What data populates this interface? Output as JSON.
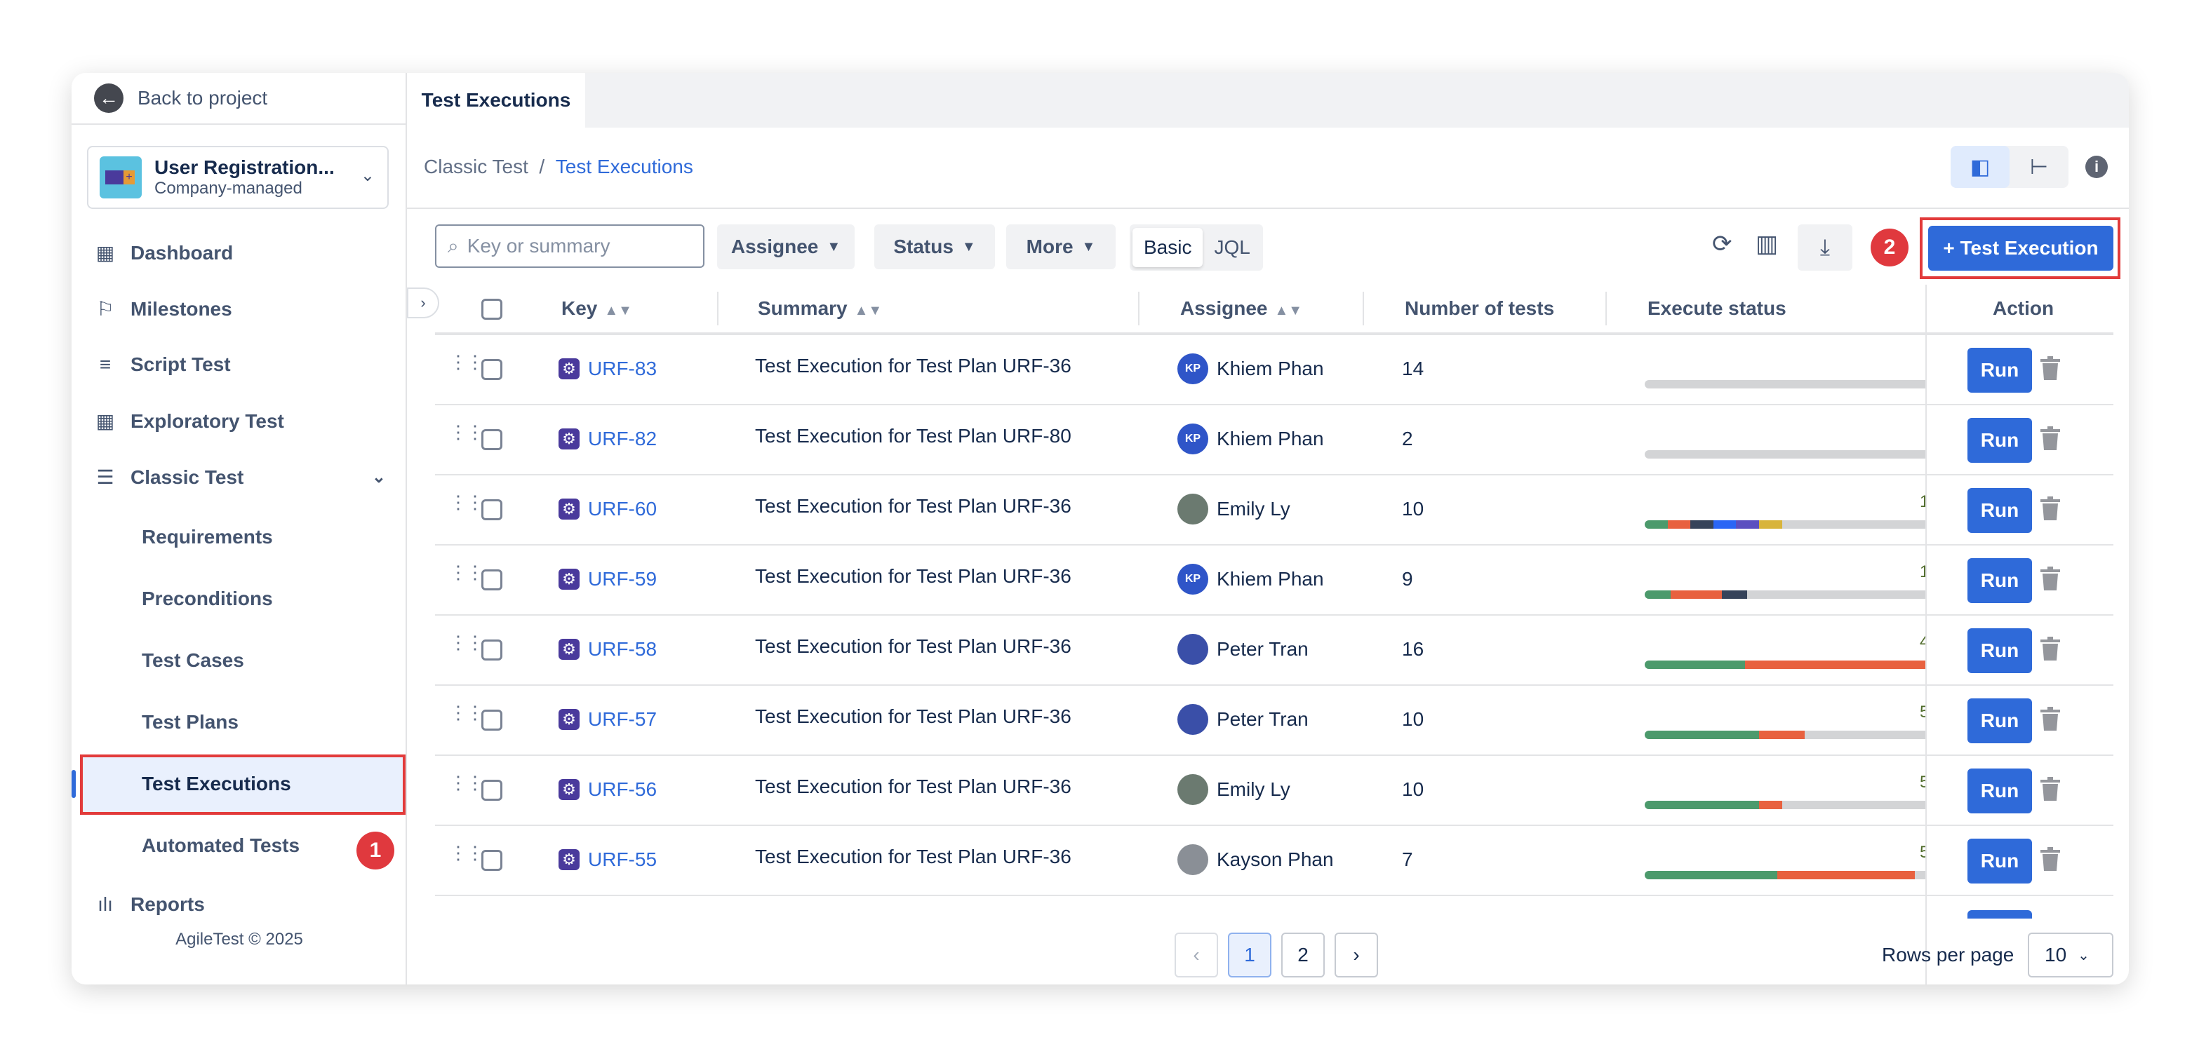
{
  "sidebar": {
    "back": "Back to project",
    "project": {
      "name": "User Registration...",
      "type": "Company-managed"
    },
    "items": [
      {
        "label": "Dashboard",
        "icon": "grid-icon"
      },
      {
        "label": "Milestones",
        "icon": "flag-icon"
      },
      {
        "label": "Script Test",
        "icon": "script-icon"
      },
      {
        "label": "Exploratory Test",
        "icon": "grid-icon"
      },
      {
        "label": "Classic Test",
        "icon": "table-icon"
      }
    ],
    "sub": [
      "Requirements",
      "Preconditions",
      "Test Cases",
      "Test Plans",
      "Test Executions",
      "Automated Tests"
    ],
    "reports": "Reports",
    "footer": "AgileTest © 2025",
    "badge1": "1",
    "selected": "Test Executions"
  },
  "tab": "Test Executions",
  "breadcrumb": {
    "parent": "Classic Test",
    "sep": "/",
    "current": "Test Executions"
  },
  "toolbar": {
    "search_placeholder": "Key or summary",
    "assignee": "Assignee",
    "status": "Status",
    "more": "More",
    "basic": "Basic",
    "jql": "JQL",
    "badge2": "2",
    "add": "+ Test Execution"
  },
  "table": {
    "headers": {
      "key": "Key",
      "summary": "Summary",
      "assignee": "Assignee",
      "num": "Number of tests",
      "status": "Execute status",
      "action": "Action"
    },
    "run_label": "Run",
    "colors": {
      "passed": "#4c9a6c",
      "failed": "#e8613f",
      "dark": "#36435a",
      "blue": "#2a66f5",
      "purple": "#5b4fc0",
      "yellow": "#d8b43b",
      "todo": "#d3d4d6"
    },
    "rows": [
      {
        "key": "URF-83",
        "summary": "Test Execution for Test Plan URF-36",
        "assignee": "Khiem Phan",
        "initials": "KP",
        "avatar": "#2f55c8",
        "num": "14",
        "label": "",
        "segments": []
      },
      {
        "key": "URF-82",
        "summary": "Test Execution for Test Plan URF-80",
        "assignee": "Khiem Phan",
        "initials": "KP",
        "avatar": "#2f55c8",
        "num": "2",
        "label": "",
        "segments": []
      },
      {
        "key": "URF-60",
        "summary": "Test Execution for Test Plan URF-36",
        "assignee": "Emily Ly",
        "initials": "",
        "avatar": "#6b7a70",
        "num": "10",
        "label": "1",
        "segments": [
          [
            "passed",
            0.05
          ],
          [
            "failed",
            0.05
          ],
          [
            "dark",
            0.05
          ],
          [
            "blue",
            0.05
          ],
          [
            "purple",
            0.05
          ],
          [
            "yellow",
            0.05
          ]
        ]
      },
      {
        "key": "URF-59",
        "summary": "Test Execution for Test Plan URF-36",
        "assignee": "Khiem Phan",
        "initials": "KP",
        "avatar": "#2f55c8",
        "num": "9",
        "label": "1",
        "segments": [
          [
            "passed",
            0.056
          ],
          [
            "failed",
            0.112
          ],
          [
            "dark",
            0.056
          ]
        ]
      },
      {
        "key": "URF-58",
        "summary": "Test Execution for Test Plan URF-36",
        "assignee": "Peter Tran",
        "initials": "",
        "avatar": "#3a4fa8",
        "num": "16",
        "label": "4",
        "segments": [
          [
            "passed",
            0.22
          ],
          [
            "failed",
            0.4
          ]
        ]
      },
      {
        "key": "URF-57",
        "summary": "Test Execution for Test Plan URF-36",
        "assignee": "Peter Tran",
        "initials": "",
        "avatar": "#3a4fa8",
        "num": "10",
        "label": "5",
        "segments": [
          [
            "passed",
            0.25
          ],
          [
            "failed",
            0.1
          ]
        ]
      },
      {
        "key": "URF-56",
        "summary": "Test Execution for Test Plan URF-36",
        "assignee": "Emily Ly",
        "initials": "",
        "avatar": "#6b7a70",
        "num": "10",
        "label": "5",
        "segments": [
          [
            "passed",
            0.25
          ],
          [
            "failed",
            0.05
          ]
        ]
      },
      {
        "key": "URF-55",
        "summary": "Test Execution for Test Plan URF-36",
        "assignee": "Kayson Phan",
        "initials": "",
        "avatar": "#8a8f96",
        "num": "7",
        "label": "5",
        "segments": [
          [
            "passed",
            0.29
          ],
          [
            "failed",
            0.3
          ]
        ]
      }
    ]
  },
  "pagination": {
    "pages": [
      "1",
      "2"
    ],
    "current": "1",
    "rows_per_page_label": "Rows per page",
    "rows_per_page": "10"
  }
}
